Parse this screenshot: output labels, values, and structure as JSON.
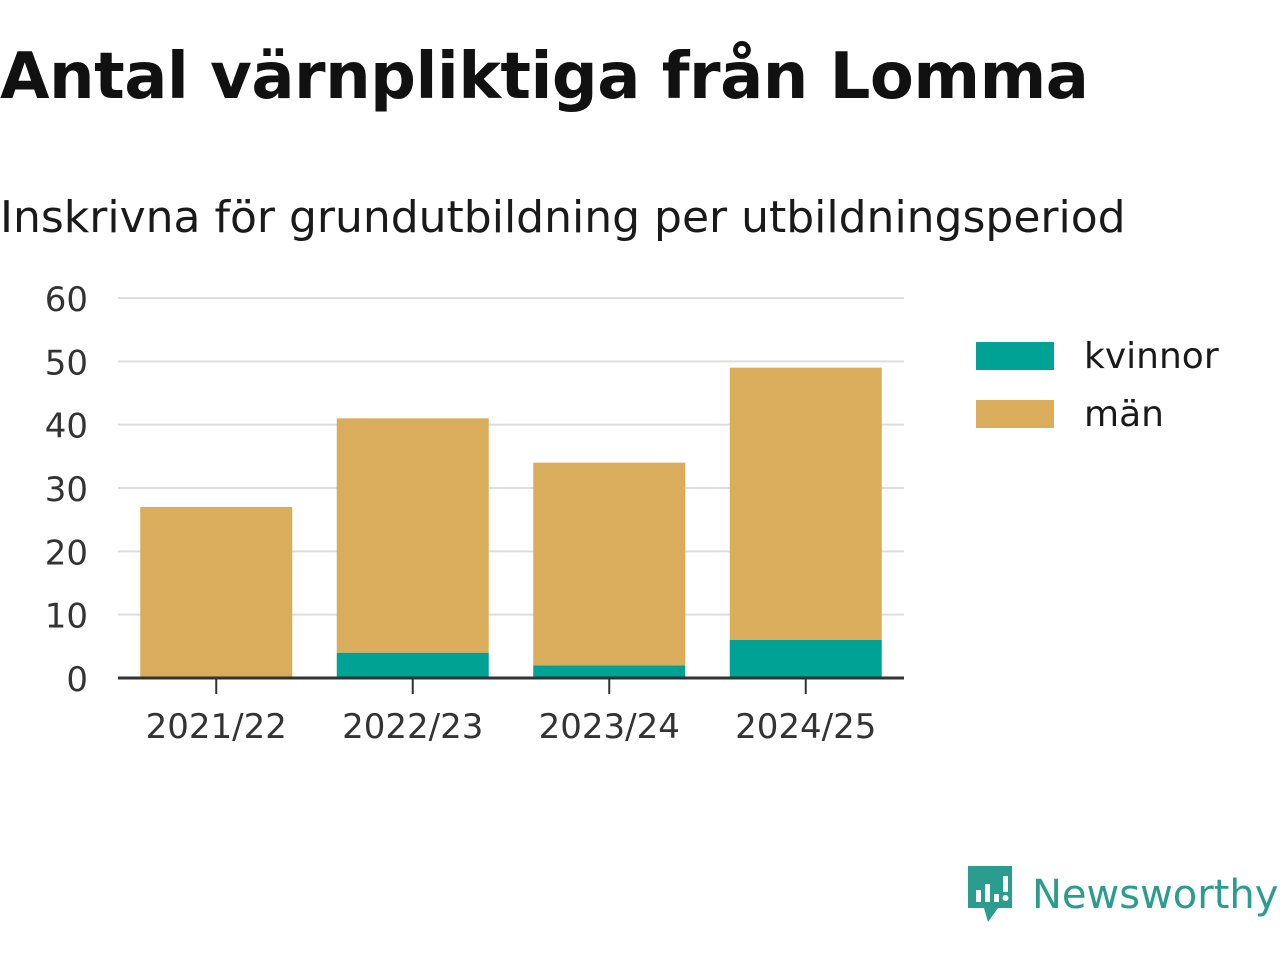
{
  "title": "Antal värnpliktiga från Lomma",
  "subtitle": "Inskrivna för grundutbildning per utbildningsperiod",
  "brand": {
    "name": "Newsworthy",
    "icon": "newsworthy-logo-icon",
    "color": "#2a9d8f"
  },
  "chart_data": {
    "type": "bar",
    "stacked": true,
    "categories": [
      "2021/22",
      "2022/23",
      "2023/24",
      "2024/25"
    ],
    "series": [
      {
        "name": "kvinnor",
        "values": [
          0,
          4,
          2,
          6
        ],
        "color": "#00a295"
      },
      {
        "name": "män",
        "values": [
          27,
          37,
          32,
          43
        ],
        "color": "#d9ad5b"
      }
    ],
    "ylim": [
      0,
      60
    ],
    "yticks": [
      0,
      10,
      20,
      30,
      40,
      50,
      60
    ],
    "xlabel": "",
    "ylabel": "",
    "grid": true,
    "legend": "right"
  }
}
